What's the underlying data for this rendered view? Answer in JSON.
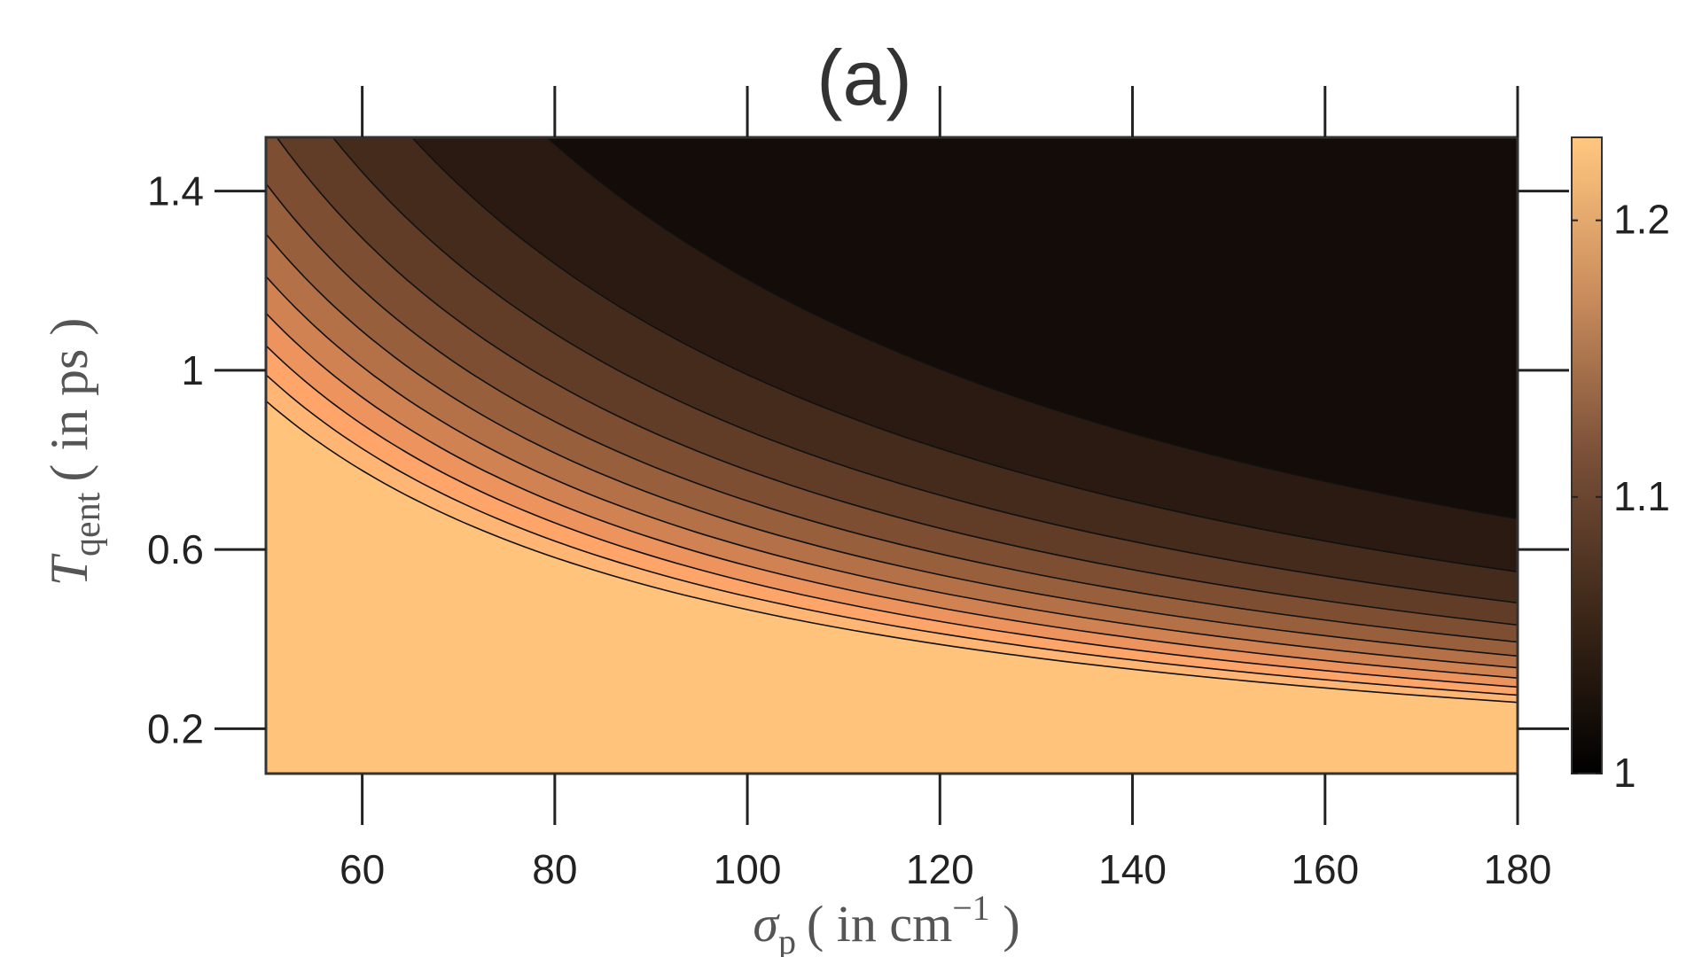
{
  "chart_data": {
    "type": "heatmap",
    "subtype": "filled-contour",
    "title": "(a)",
    "xlabel": {
      "symbol": "σ",
      "subscript": "p",
      "text": "( in cm",
      "superscript": "−1",
      "close": " )"
    },
    "ylabel": {
      "symbol": "T",
      "subscript": "qent",
      "text": "( in ps )"
    },
    "xlim": [
      50,
      180
    ],
    "ylim": [
      0.1,
      1.52
    ],
    "xticks": [
      60,
      80,
      100,
      120,
      140,
      160,
      180
    ],
    "xtick_labels": [
      "60",
      "80",
      "100",
      "120",
      "140",
      "160",
      "180"
    ],
    "yticks": [
      0.2,
      0.6,
      1,
      1.4
    ],
    "ytick_labels": [
      "0.2",
      "0.6",
      "1",
      "1.4"
    ],
    "colorbar": {
      "range": [
        1.0,
        1.23
      ],
      "ticks": [
        1,
        1.1,
        1.2
      ],
      "tick_labels": [
        "1",
        "1.1",
        "1.2"
      ],
      "colormap": "copper",
      "low_color": "#000000",
      "high_color": "#ffc77f"
    },
    "contour_levels": [
      1.02,
      1.04,
      1.06,
      1.08,
      1.1,
      1.12,
      1.14,
      1.16,
      1.18,
      1.2,
      1.22
    ],
    "field": {
      "form": "1 + a * exp(-b * x * y)",
      "a": 1.0,
      "b": 0.0325
    },
    "grid": false
  }
}
